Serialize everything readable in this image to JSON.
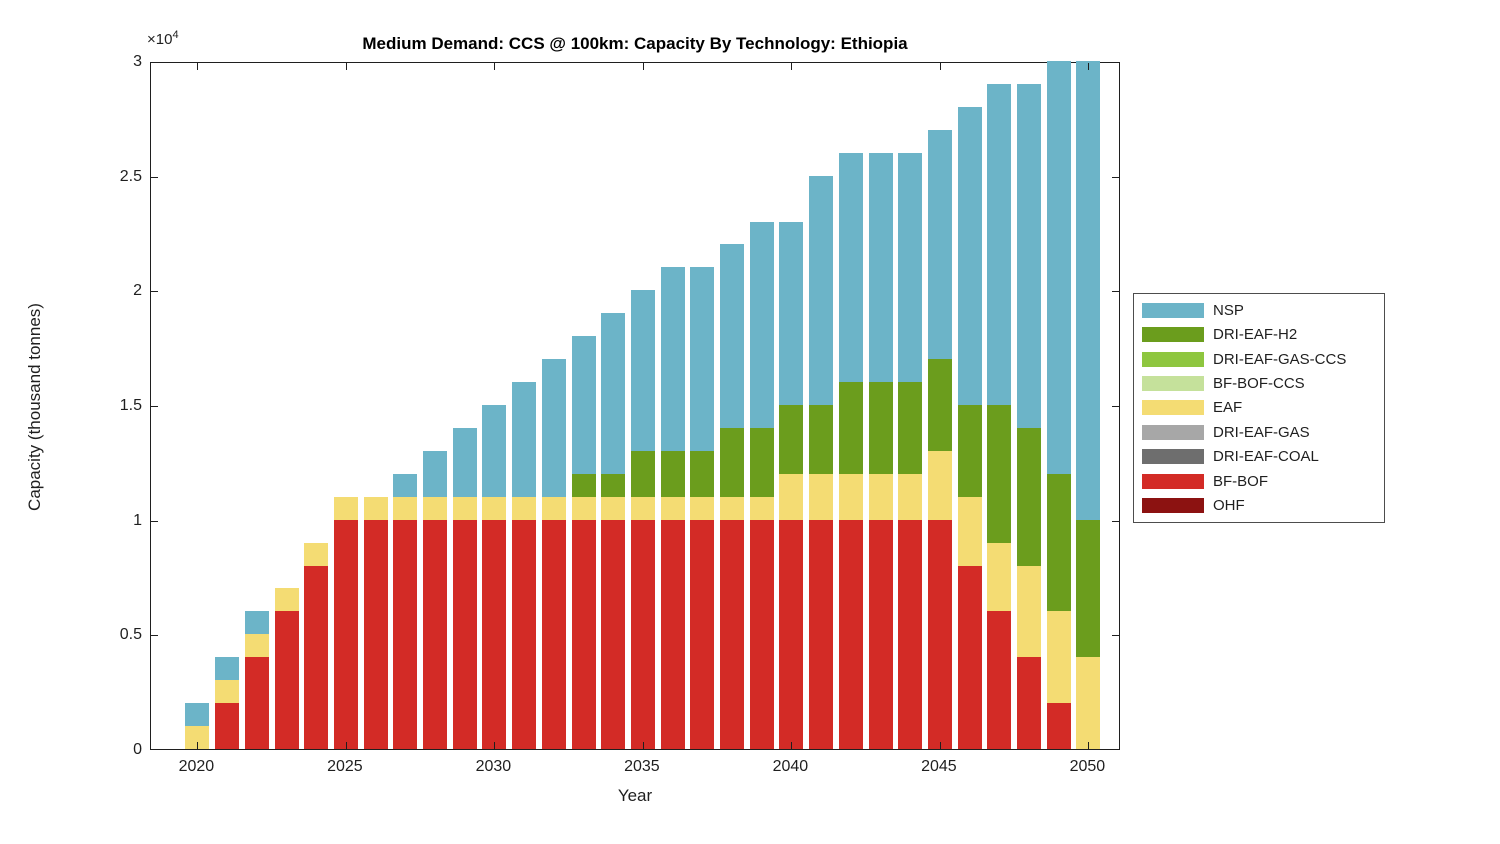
{
  "figure": {
    "title": "Medium Demand: CCS @ 100km: Capacity By Technology: Ethiopia",
    "xlabel": "Year",
    "ylabel": "Capacity (thousand tonnes)",
    "exp_base": "×10",
    "exp_power": "4"
  },
  "chart_data": {
    "type": "bar",
    "stacked": true,
    "title": "Medium Demand: CCS @ 100km: Capacity By Technology: Ethiopia",
    "xlabel": "Year",
    "ylabel": "Capacity (thousand tonnes)",
    "grid": false,
    "legend_position": "outside-right",
    "x": [
      2020,
      2021,
      2022,
      2023,
      2024,
      2025,
      2026,
      2027,
      2028,
      2029,
      2030,
      2031,
      2032,
      2033,
      2034,
      2035,
      2036,
      2037,
      2038,
      2039,
      2040,
      2041,
      2042,
      2043,
      2044,
      2045,
      2046,
      2047,
      2048,
      2049,
      2050
    ],
    "xticks": [
      2020,
      2025,
      2030,
      2035,
      2040,
      2045,
      2050
    ],
    "ylim": [
      0,
      30000
    ],
    "yticks": [
      0,
      5000,
      10000,
      15000,
      20000,
      25000,
      30000
    ],
    "ytick_labels": [
      "0",
      "0.5",
      "1",
      "1.5",
      "2",
      "2.5",
      "3"
    ],
    "y_axis_multiplier": "1e4",
    "series": [
      {
        "name": "OHF",
        "color": "#8C1211",
        "values": [
          0,
          0,
          0,
          0,
          0,
          0,
          0,
          0,
          0,
          0,
          0,
          0,
          0,
          0,
          0,
          0,
          0,
          0,
          0,
          0,
          0,
          0,
          0,
          0,
          0,
          0,
          0,
          0,
          0,
          0,
          0
        ]
      },
      {
        "name": "BF-BOF",
        "color": "#D32B26",
        "values": [
          0,
          2000,
          4000,
          6000,
          8000,
          10000,
          10000,
          10000,
          10000,
          10000,
          10000,
          10000,
          10000,
          10000,
          10000,
          10000,
          10000,
          10000,
          10000,
          10000,
          10000,
          10000,
          10000,
          10000,
          10000,
          10000,
          8000,
          6000,
          4000,
          2000,
          0
        ]
      },
      {
        "name": "DRI-EAF-COAL",
        "color": "#6E6E6E",
        "values": [
          0,
          0,
          0,
          0,
          0,
          0,
          0,
          0,
          0,
          0,
          0,
          0,
          0,
          0,
          0,
          0,
          0,
          0,
          0,
          0,
          0,
          0,
          0,
          0,
          0,
          0,
          0,
          0,
          0,
          0,
          0
        ]
      },
      {
        "name": "DRI-EAF-GAS",
        "color": "#A7A7A7",
        "values": [
          0,
          0,
          0,
          0,
          0,
          0,
          0,
          0,
          0,
          0,
          0,
          0,
          0,
          0,
          0,
          0,
          0,
          0,
          0,
          0,
          0,
          0,
          0,
          0,
          0,
          0,
          0,
          0,
          0,
          0,
          0
        ]
      },
      {
        "name": "EAF",
        "color": "#F4DC73",
        "values": [
          1000,
          1000,
          1000,
          1000,
          1000,
          1000,
          1000,
          1000,
          1000,
          1000,
          1000,
          1000,
          1000,
          1000,
          1000,
          1000,
          1000,
          1000,
          1000,
          1000,
          2000,
          2000,
          2000,
          2000,
          2000,
          3000,
          3000,
          3000,
          4000,
          4000,
          4000
        ]
      },
      {
        "name": "BF-BOF-CCS",
        "color": "#C5E19B",
        "values": [
          0,
          0,
          0,
          0,
          0,
          0,
          0,
          0,
          0,
          0,
          0,
          0,
          0,
          0,
          0,
          0,
          0,
          0,
          0,
          0,
          0,
          0,
          0,
          0,
          0,
          0,
          0,
          0,
          0,
          0,
          0
        ]
      },
      {
        "name": "DRI-EAF-GAS-CCS",
        "color": "#8EC63F",
        "values": [
          0,
          0,
          0,
          0,
          0,
          0,
          0,
          0,
          0,
          0,
          0,
          0,
          0,
          0,
          0,
          0,
          0,
          0,
          0,
          0,
          0,
          0,
          0,
          0,
          0,
          0,
          0,
          0,
          0,
          0,
          0
        ]
      },
      {
        "name": "DRI-EAF-H2",
        "color": "#6B9D1D",
        "values": [
          0,
          0,
          0,
          0,
          0,
          0,
          0,
          0,
          0,
          0,
          0,
          0,
          0,
          1000,
          1000,
          2000,
          2000,
          2000,
          3000,
          3000,
          3000,
          3000,
          4000,
          4000,
          4000,
          4000,
          4000,
          6000,
          6000,
          6000,
          6000
        ]
      },
      {
        "name": "NSP",
        "color": "#6CB4C8",
        "values": [
          1000,
          1000,
          1000,
          0,
          0,
          0,
          0,
          1000,
          2000,
          3000,
          4000,
          5000,
          6000,
          6000,
          7000,
          7000,
          8000,
          8000,
          8000,
          9000,
          8000,
          10000,
          10000,
          10000,
          10000,
          10000,
          13000,
          14000,
          15000,
          18000,
          20000
        ]
      }
    ],
    "legend_order": [
      "NSP",
      "DRI-EAF-H2",
      "DRI-EAF-GAS-CCS",
      "BF-BOF-CCS",
      "EAF",
      "DRI-EAF-GAS",
      "DRI-EAF-COAL",
      "BF-BOF",
      "OHF"
    ]
  }
}
